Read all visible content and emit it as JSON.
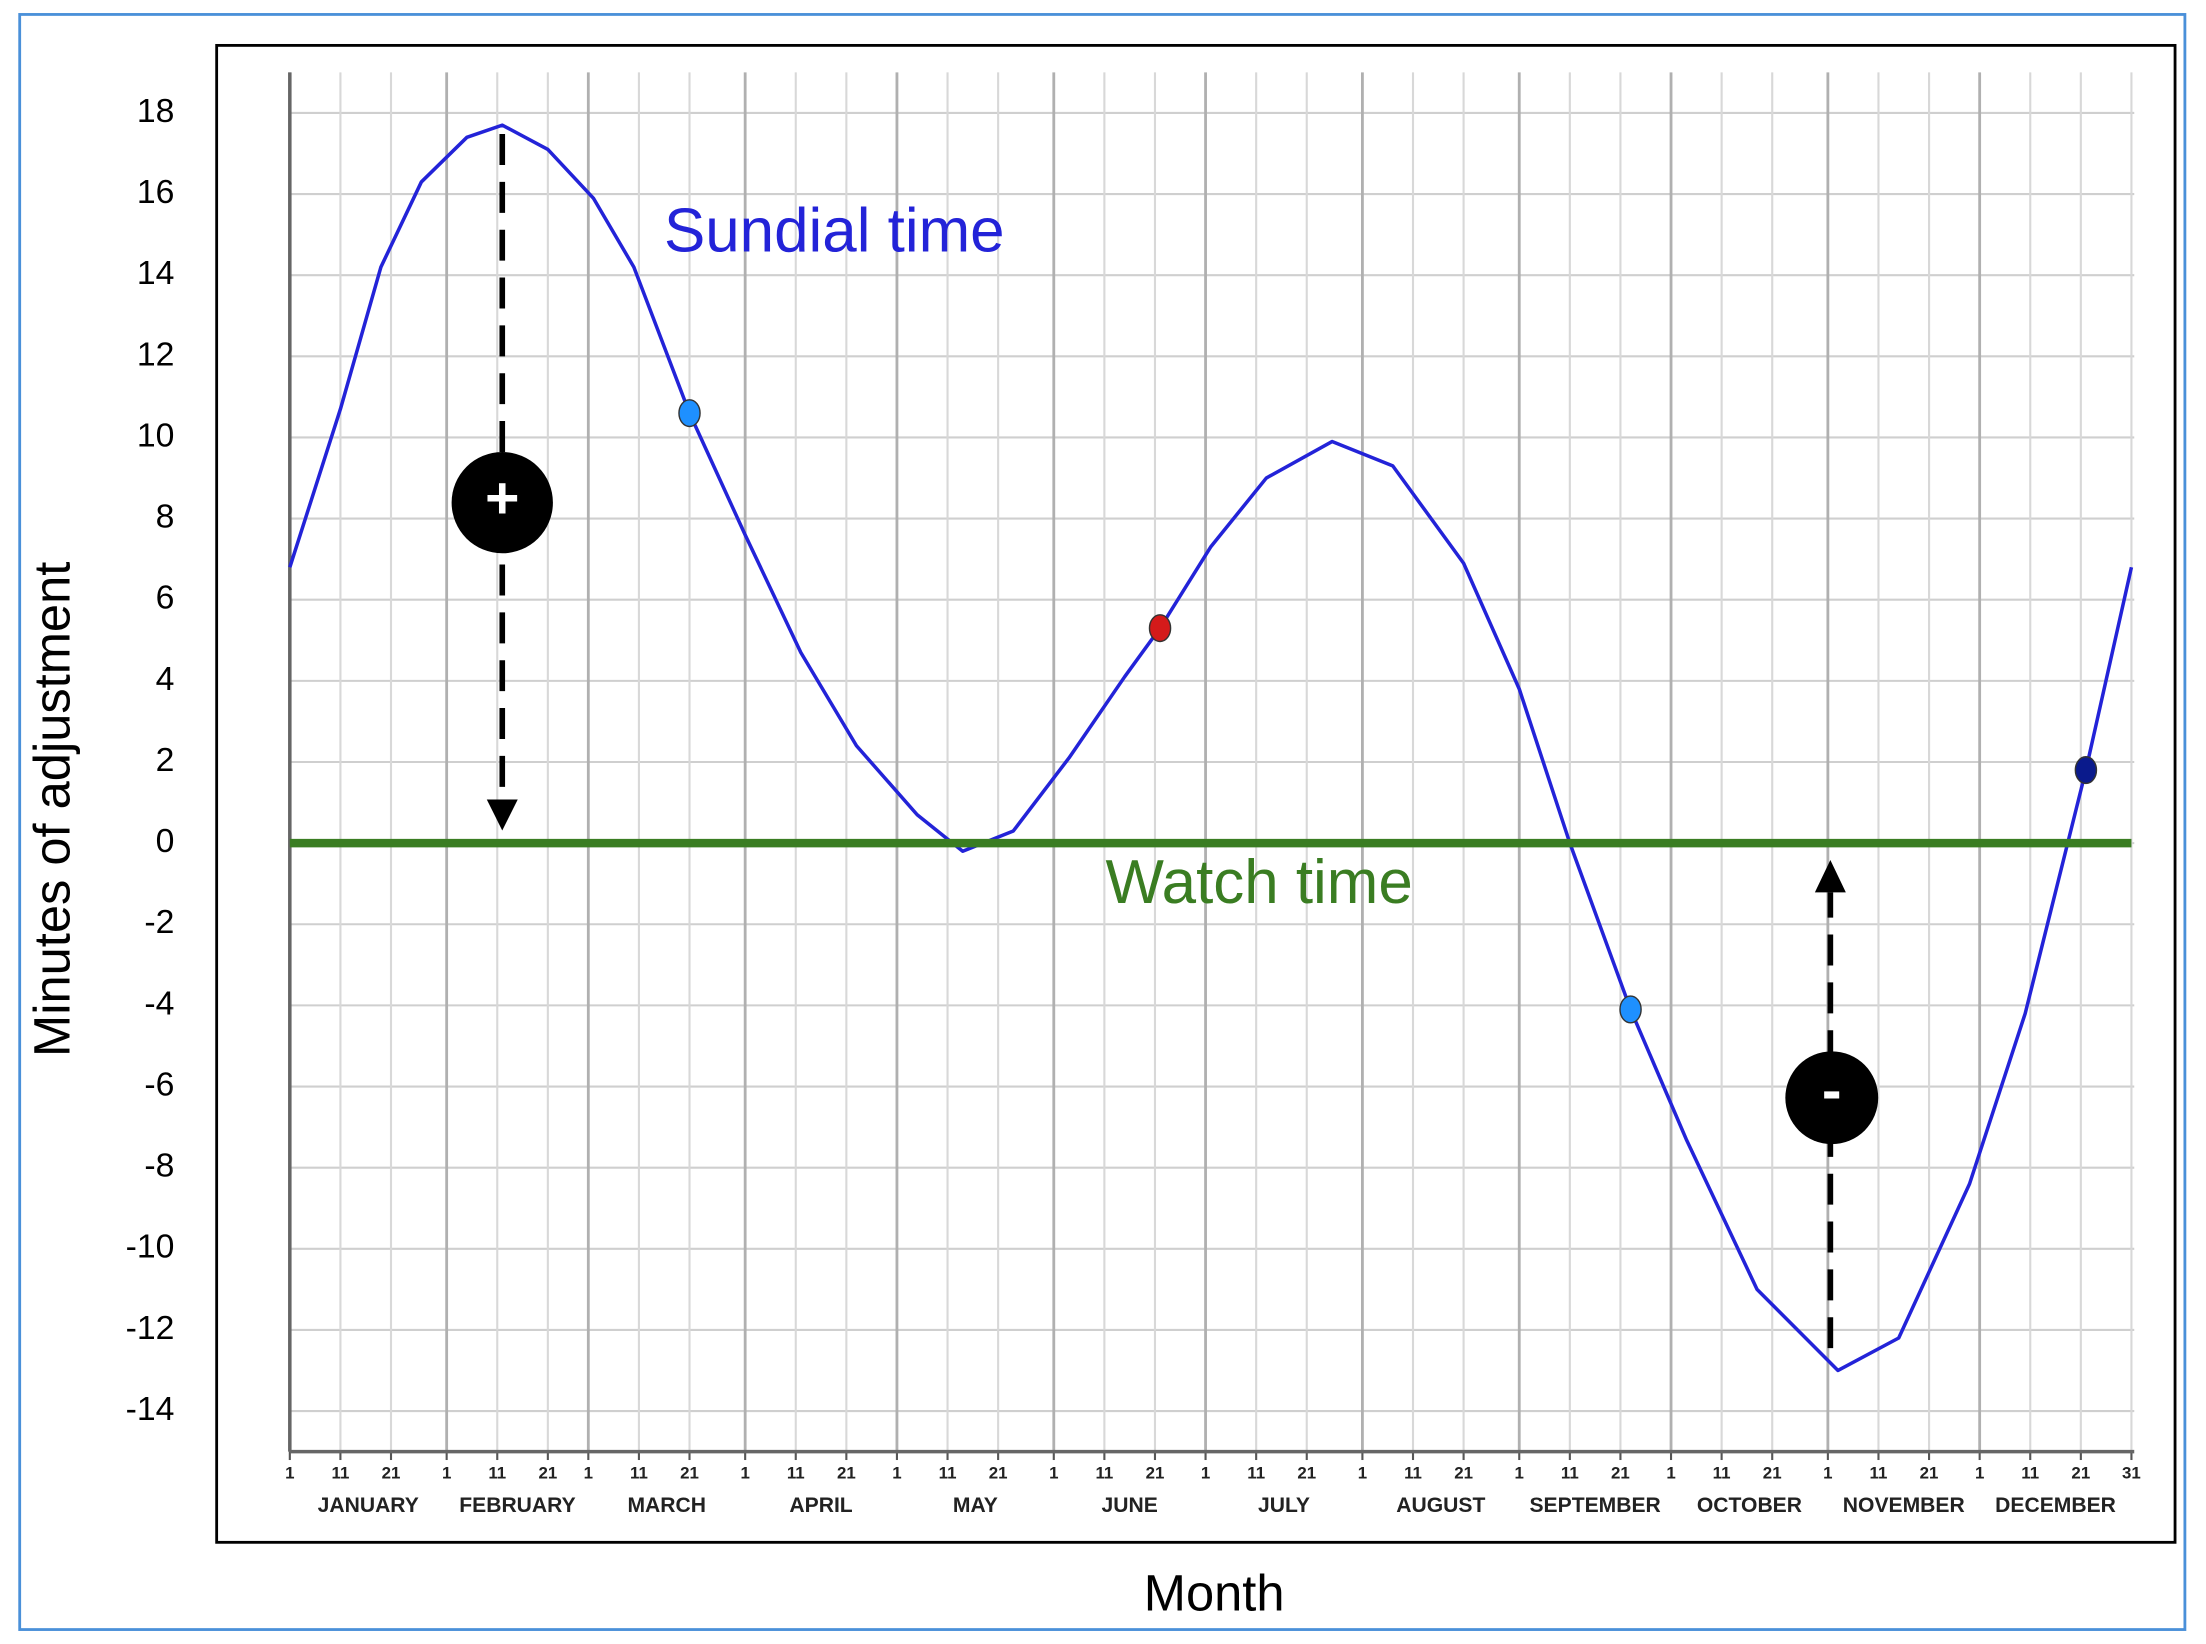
{
  "chart_data": {
    "type": "line",
    "x_label": "Month",
    "y_label": "Minutes of adjustment",
    "xlim": [
      1,
      365
    ],
    "ylim": [
      -15,
      19
    ],
    "yticks": [
      -14,
      -12,
      -10,
      -8,
      -6,
      -4,
      -2,
      0,
      2,
      4,
      6,
      8,
      10,
      12,
      14,
      16,
      18
    ],
    "xticks": [
      1,
      11,
      21,
      {
        "value": 32,
        "label": "1"
      },
      {
        "value": 42,
        "label": "11"
      },
      {
        "value": 52,
        "label": "21"
      },
      {
        "value": 60,
        "label": "1"
      },
      {
        "value": 70,
        "label": "11"
      },
      {
        "value": 80,
        "label": "21"
      },
      {
        "value": 91,
        "label": "1"
      },
      {
        "value": 101,
        "label": "11"
      },
      {
        "value": 111,
        "label": "21"
      },
      {
        "value": 121,
        "label": "1"
      },
      {
        "value": 131,
        "label": "11"
      },
      {
        "value": 141,
        "label": "21"
      },
      {
        "value": 152,
        "label": "1"
      },
      {
        "value": 162,
        "label": "11"
      },
      {
        "value": 172,
        "label": "21"
      },
      {
        "value": 182,
        "label": "1"
      },
      {
        "value": 192,
        "label": "11"
      },
      {
        "value": 202,
        "label": "21"
      },
      {
        "value": 213,
        "label": "1"
      },
      {
        "value": 223,
        "label": "11"
      },
      {
        "value": 233,
        "label": "21"
      },
      {
        "value": 244,
        "label": "1"
      },
      {
        "value": 254,
        "label": "11"
      },
      {
        "value": 264,
        "label": "21"
      },
      {
        "value": 274,
        "label": "1"
      },
      {
        "value": 284,
        "label": "11"
      },
      {
        "value": 294,
        "label": "21"
      },
      {
        "value": 305,
        "label": "1"
      },
      {
        "value": 315,
        "label": "11"
      },
      {
        "value": 325,
        "label": "21"
      },
      {
        "value": 335,
        "label": "1"
      },
      {
        "value": 345,
        "label": "11"
      },
      {
        "value": 355,
        "label": "21"
      },
      {
        "value": 365,
        "label": "31"
      }
    ],
    "months": [
      "JANUARY",
      "FEBRUARY",
      "MARCH",
      "APRIL",
      "MAY",
      "JUNE",
      "JULY",
      "AUGUST",
      "SEPTEMBER",
      "OCTOBER",
      "NOVEMBER",
      "DECEMBER"
    ],
    "grid": true,
    "series": [
      {
        "name": "Sundial time",
        "color": "#2323d8",
        "x": [
          1,
          11,
          19,
          27,
          36,
          43,
          52,
          61,
          69,
          80,
          91,
          102,
          113,
          125,
          134,
          144,
          155,
          166,
          173,
          183,
          194,
          207,
          219,
          233,
          244,
          254,
          266,
          277,
          291,
          307,
          319,
          333,
          344,
          356,
          365
        ],
        "values": [
          6.8,
          10.7,
          14.2,
          16.3,
          17.4,
          17.7,
          17.1,
          15.9,
          14.2,
          10.6,
          7.6,
          4.7,
          2.4,
          0.7,
          -0.2,
          0.3,
          2.1,
          4.1,
          5.3,
          7.3,
          9.0,
          9.9,
          9.3,
          6.9,
          3.8,
          0,
          -4.1,
          -7.3,
          -11.0,
          -13.0,
          -12.2,
          -8.4,
          -4.2,
          1.8,
          6.8
        ]
      },
      {
        "name": "Watch time",
        "color": "#3a7d22",
        "x": [
          1,
          365
        ],
        "values": [
          0,
          0
        ]
      }
    ],
    "points": {
      "x": [
        80,
        173,
        266,
        356
      ],
      "values": [
        10.6,
        5.3,
        -4.1,
        1.8
      ],
      "colors": [
        "#1e90ff",
        "#d41a1a",
        "#1e90ff",
        "#0a1a8c"
      ]
    },
    "annotations": {
      "plus": "+",
      "minus": "-"
    }
  }
}
